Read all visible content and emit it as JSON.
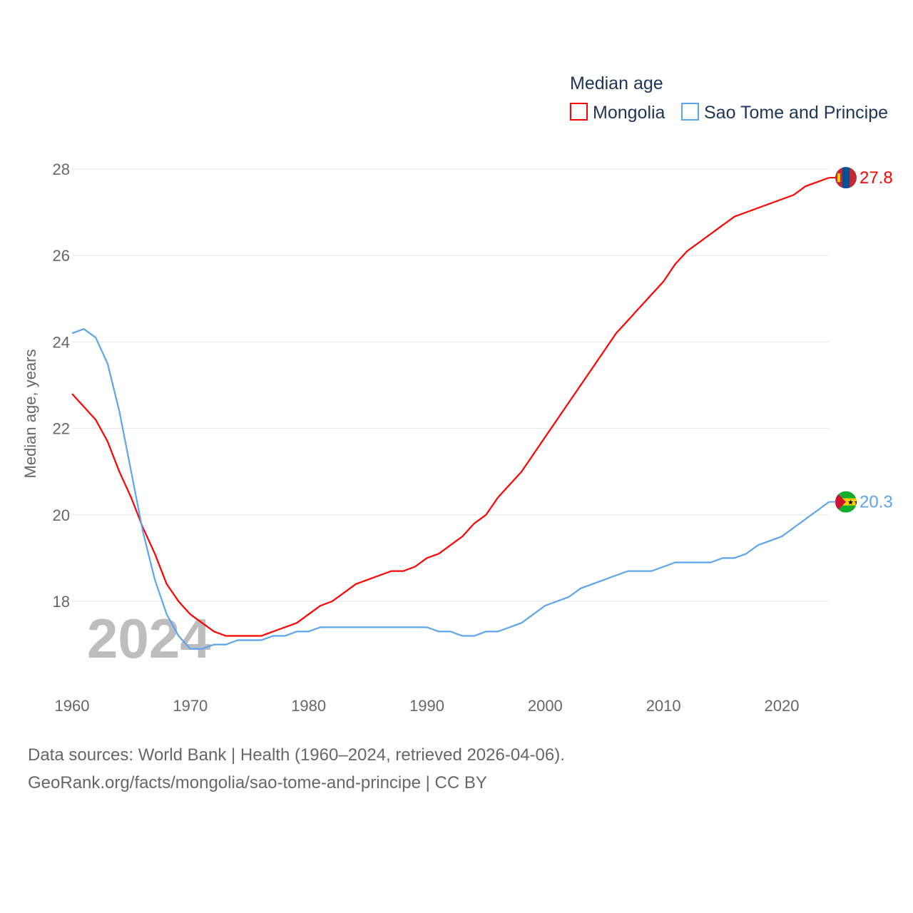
{
  "chart_data": {
    "type": "line",
    "title": "Median age",
    "ylabel": "Median age, years",
    "xlabel": "",
    "xlim": [
      1960,
      2024
    ],
    "ylim": [
      16.5,
      28.5
    ],
    "x_ticks": [
      1960,
      1970,
      1980,
      1990,
      2000,
      2010,
      2020
    ],
    "y_ticks": [
      18,
      20,
      22,
      24,
      26,
      28
    ],
    "grid": "horizontal",
    "legend_placement": "top-right",
    "current_year_label": "2024",
    "x": [
      1960,
      1961,
      1962,
      1963,
      1964,
      1965,
      1966,
      1967,
      1968,
      1969,
      1970,
      1971,
      1972,
      1973,
      1974,
      1975,
      1976,
      1977,
      1978,
      1979,
      1980,
      1981,
      1982,
      1983,
      1984,
      1985,
      1986,
      1987,
      1988,
      1989,
      1990,
      1991,
      1992,
      1993,
      1994,
      1995,
      1996,
      1997,
      1998,
      1999,
      2000,
      2001,
      2002,
      2003,
      2004,
      2005,
      2006,
      2007,
      2008,
      2009,
      2010,
      2011,
      2012,
      2013,
      2014,
      2015,
      2016,
      2017,
      2018,
      2019,
      2020,
      2021,
      2022,
      2023,
      2024
    ],
    "series": [
      {
        "name": "Mongolia",
        "color": "#ff0000",
        "end_label": "27.8",
        "values": [
          22.8,
          22.5,
          22.2,
          21.7,
          21.0,
          20.4,
          19.7,
          19.1,
          18.4,
          18.0,
          17.7,
          17.5,
          17.3,
          17.2,
          17.2,
          17.2,
          17.2,
          17.3,
          17.4,
          17.5,
          17.7,
          17.9,
          18.0,
          18.2,
          18.4,
          18.5,
          18.6,
          18.7,
          18.7,
          18.8,
          19.0,
          19.1,
          19.3,
          19.5,
          19.8,
          20.0,
          20.4,
          20.7,
          21.0,
          21.4,
          21.8,
          22.2,
          22.6,
          23.0,
          23.4,
          23.8,
          24.2,
          24.5,
          24.8,
          25.1,
          25.4,
          25.8,
          26.1,
          26.3,
          26.5,
          26.7,
          26.9,
          27.0,
          27.1,
          27.2,
          27.3,
          27.4,
          27.6,
          27.7,
          27.8
        ]
      },
      {
        "name": "Sao Tome and Principe",
        "color": "#5ba4ee",
        "end_label": "20.3",
        "values": [
          24.2,
          24.3,
          24.1,
          23.5,
          22.4,
          21.0,
          19.6,
          18.5,
          17.7,
          17.2,
          16.9,
          16.9,
          17.0,
          17.0,
          17.1,
          17.1,
          17.1,
          17.2,
          17.2,
          17.3,
          17.3,
          17.4,
          17.4,
          17.4,
          17.4,
          17.4,
          17.4,
          17.4,
          17.4,
          17.4,
          17.4,
          17.3,
          17.3,
          17.2,
          17.2,
          17.3,
          17.3,
          17.4,
          17.5,
          17.7,
          17.9,
          18.0,
          18.1,
          18.3,
          18.4,
          18.5,
          18.6,
          18.7,
          18.7,
          18.7,
          18.8,
          18.9,
          18.9,
          18.9,
          18.9,
          19.0,
          19.0,
          19.1,
          19.3,
          19.4,
          19.5,
          19.7,
          19.9,
          20.1,
          20.3
        ]
      }
    ]
  },
  "footer": {
    "line1": "Data sources: World Bank | Health (1960–2024, retrieved 2026-04-06).",
    "line2": "GeoRank.org/facts/mongolia/sao-tome-and-principe | CC BY"
  }
}
